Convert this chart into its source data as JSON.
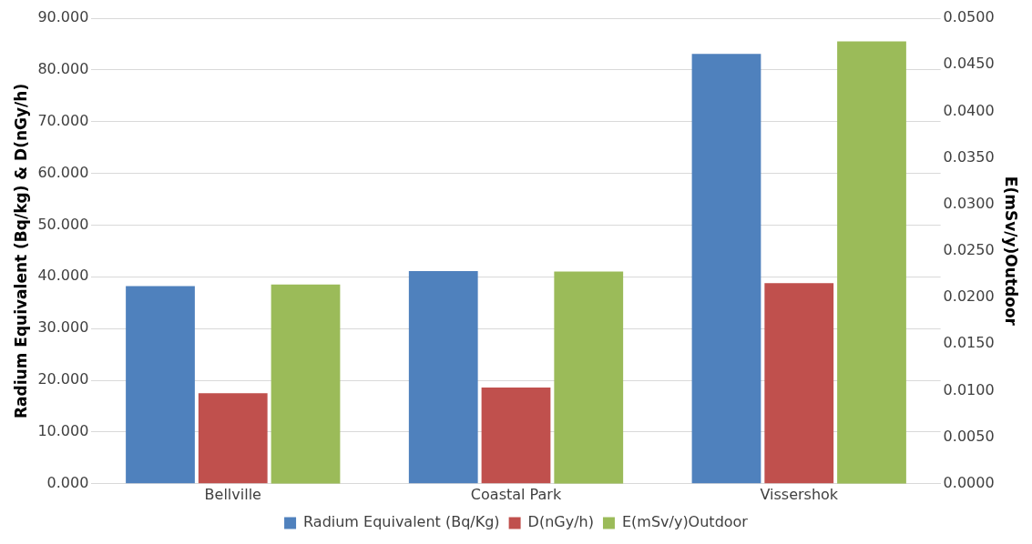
{
  "chart_data": {
    "type": "bar",
    "ylabel": "Radium Equivalent (Bq/kg) & D(nGy/h)",
    "y2label": "E(mSv/y)Outdoor",
    "categories": [
      "Bellville",
      "Coastal Park",
      "Vissershok"
    ],
    "series": [
      {
        "name": "Radium Equivalent (Bq/Kg)",
        "color": "#4f81bd",
        "values": [
          38.2,
          41.1,
          83.1
        ]
      },
      {
        "name": "D(nGy/h)",
        "color": "#c0504d",
        "values": [
          17.5,
          18.6,
          38.8
        ]
      },
      {
        "name": "E(mSv/y)Outdoor",
        "color": "#9bbb59",
        "axis": "y2",
        "values": [
          0.0214,
          0.0228,
          0.0475
        ]
      }
    ],
    "ylim": [
      0,
      90
    ],
    "yticks": [
      {
        "value": 0,
        "label": "0.000"
      },
      {
        "value": 10,
        "label": "10.000"
      },
      {
        "value": 20,
        "label": "20.000"
      },
      {
        "value": 30,
        "label": "30.000"
      },
      {
        "value": 40,
        "label": "40.000"
      },
      {
        "value": 50,
        "label": "50.000"
      },
      {
        "value": 60,
        "label": "60.000"
      },
      {
        "value": 70,
        "label": "70.000"
      },
      {
        "value": 80,
        "label": "80.000"
      },
      {
        "value": 90,
        "label": "90.000"
      }
    ],
    "y2lim": [
      0,
      0.05
    ],
    "y2ticks": [
      {
        "value": 0,
        "label": "0.0000"
      },
      {
        "value": 0.005,
        "label": "0.0050"
      },
      {
        "value": 0.01,
        "label": "0.0100"
      },
      {
        "value": 0.015,
        "label": "0.0150"
      },
      {
        "value": 0.02,
        "label": "0.0200"
      },
      {
        "value": 0.025,
        "label": "0.0250"
      },
      {
        "value": 0.03,
        "label": "0.0300"
      },
      {
        "value": 0.035,
        "label": "0.0350"
      },
      {
        "value": 0.04,
        "label": "0.0400"
      },
      {
        "value": 0.045,
        "label": "0.0450"
      },
      {
        "value": 0.05,
        "label": "0.0500"
      }
    ],
    "grid": "y",
    "legend": "bottom"
  }
}
